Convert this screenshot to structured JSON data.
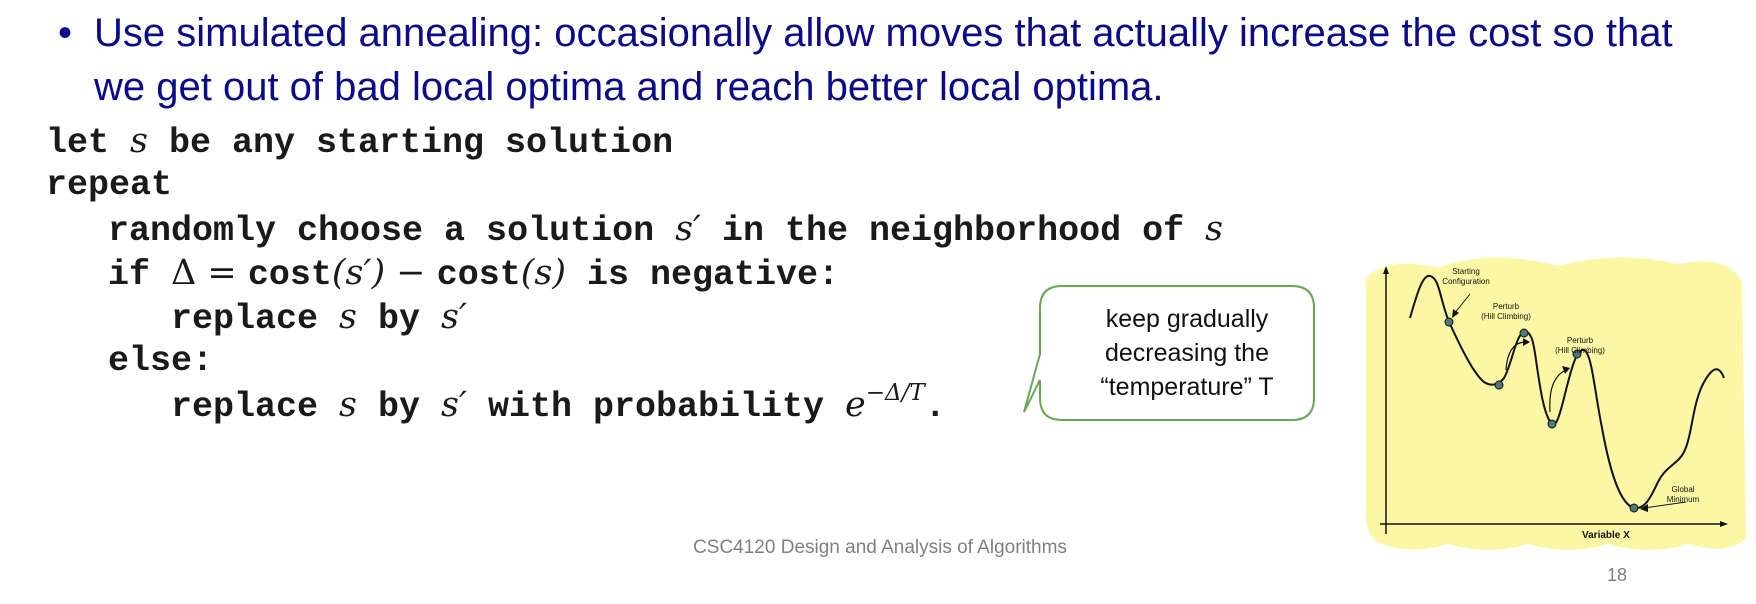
{
  "bullet": {
    "marker": "•",
    "text": "Use simulated annealing: occasionally allow moves that actually increase the cost so that we get out of bad local optima and reach better local optima."
  },
  "pseudocode": {
    "line1": {
      "pre": "let ",
      "var": "s",
      "post": " be any starting solution"
    },
    "line2": {
      "text": "repeat"
    },
    "line3": {
      "pre": "randomly choose a solution ",
      "var": "s′",
      "mid": " in the neighborhood of ",
      "var2": "s"
    },
    "line4": {
      "pre": "if ",
      "delta": "Δ",
      "eq": " = ",
      "cost1": "cost",
      "arg1": "(s′)",
      "minus": " − ",
      "cost2": "cost",
      "arg2": "(s)",
      "post": " is negative:"
    },
    "line5": {
      "pre": "replace ",
      "var": "s",
      "mid": " by ",
      "var2": "s′"
    },
    "line6": {
      "text": "else:"
    },
    "line7": {
      "pre": "replace ",
      "var": "s",
      "mid": " by ",
      "var2": "s′",
      "post": " with probability ",
      "base": "e",
      "exponent": "−Δ/T",
      "end": "."
    }
  },
  "callout": {
    "line1": "keep gradually",
    "line2": "decreasing the",
    "line3": "“temperature” T"
  },
  "figure": {
    "highlight_color": "#fbf7a4",
    "label_start": [
      "Starting",
      "Configuration"
    ],
    "label_perturb1": [
      "Perturb",
      "(Hill Climbing)"
    ],
    "label_perturb2": [
      "Perturb",
      "(Hill Climbing)"
    ],
    "label_global": [
      "Global",
      "Minimum"
    ],
    "x_axis_label": "Variable X"
  },
  "footer": "CSC4120 Design and Analysis of Algorithms",
  "page_number": "18",
  "colors": {
    "bullet_text": "#0a0a8c",
    "callout_border": "#6aa84f",
    "code_text": "#1a1a1a",
    "footer_text": "#808080",
    "marker_fill": "#4a7a7a"
  }
}
